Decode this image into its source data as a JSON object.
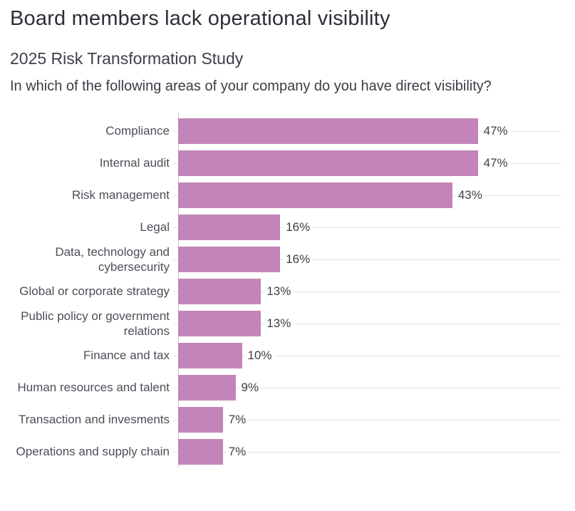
{
  "header": {
    "title": "Board members lack operational visibility",
    "subtitle": "2025 Risk Transformation Study",
    "question": "In which of the following areas of your company do you have direct visibility?"
  },
  "chart_data": {
    "type": "bar",
    "orientation": "horizontal",
    "title": "Board members lack operational visibility",
    "subtitle": "2025 Risk Transformation Study",
    "question": "In which of the following areas of your company do you have direct visibility?",
    "categories": [
      "Compliance",
      "Internal audit",
      "Risk management",
      "Legal",
      "Data, technology and cybersecurity",
      "Global or corporate strategy",
      "Public policy or government relations",
      "Finance and tax",
      "Human resources and talent",
      "Transaction and invesments",
      "Operations and supply chain"
    ],
    "values": [
      47,
      47,
      43,
      16,
      16,
      13,
      13,
      10,
      9,
      7,
      7
    ],
    "value_labels": [
      "47%",
      "47%",
      "43%",
      "16%",
      "16%",
      "13%",
      "13%",
      "10%",
      "9%",
      "7%",
      "7%"
    ],
    "unit": "%",
    "axis_max": 60,
    "grid": true,
    "legend": false,
    "xlabel": "",
    "ylabel": "",
    "bar_color": "#c385b9"
  },
  "colors": {
    "bar": "#c385b9",
    "title_text": "#2e2e38",
    "body_text": "#3c3c46",
    "category_label": "#4d4d57",
    "value_label": "#3f3f3f",
    "gridline": "#e4e4e4",
    "axis_line": "#cccccc",
    "background": "#ffffff"
  }
}
